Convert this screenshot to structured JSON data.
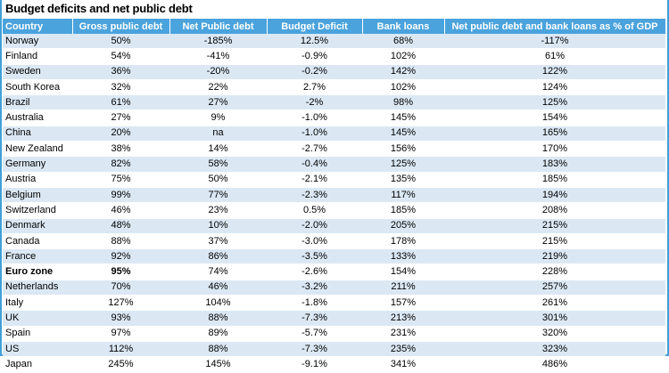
{
  "title": "Budget deficits and net public debt",
  "headers": [
    "Country",
    "Gross public debt",
    "Net Public debt",
    "Budget Deficit",
    "Bank loans",
    "Net public debt and bank loans as % of GDP"
  ],
  "rows": [
    [
      "Norway",
      "50%",
      "-185%",
      "12.5%",
      "68%",
      "-117%"
    ],
    [
      "Finland",
      "54%",
      "-41%",
      "-0.9%",
      "102%",
      "61%"
    ],
    [
      "Sweden",
      "36%",
      "-20%",
      "-0.2%",
      "142%",
      "122%"
    ],
    [
      "South Korea",
      "32%",
      "22%",
      "2.7%",
      "102%",
      "124%"
    ],
    [
      "Brazil",
      "61%",
      "27%",
      "-2%",
      "98%",
      "125%"
    ],
    [
      "Australia",
      "27%",
      "9%",
      "-1.0%",
      "145%",
      "154%"
    ],
    [
      "China",
      "20%",
      "na",
      "-1.0%",
      "145%",
      "165%"
    ],
    [
      "New Zealand",
      "38%",
      "14%",
      "-2.7%",
      "156%",
      "170%"
    ],
    [
      "Germany",
      "82%",
      "58%",
      "-0.4%",
      "125%",
      "183%"
    ],
    [
      "Austria",
      "75%",
      "50%",
      "-2.1%",
      "135%",
      "185%"
    ],
    [
      "Belgium",
      "99%",
      "77%",
      "-2.3%",
      "117%",
      "194%"
    ],
    [
      "Switzerland",
      "46%",
      "23%",
      "0.5%",
      "185%",
      "208%"
    ],
    [
      "Denmark",
      "48%",
      "10%",
      "-2.0%",
      "205%",
      "215%"
    ],
    [
      "Canada",
      "88%",
      "37%",
      "-3.0%",
      "178%",
      "215%"
    ],
    [
      "France",
      "92%",
      "86%",
      "-3.5%",
      "133%",
      "219%"
    ],
    [
      "Euro zone",
      "95%",
      "74%",
      "-2.6%",
      "154%",
      "228%"
    ],
    [
      "Netherlands",
      "70%",
      "46%",
      "-3.2%",
      "211%",
      "257%"
    ],
    [
      "Italy",
      "127%",
      "104%",
      "-1.8%",
      "157%",
      "261%"
    ],
    [
      "UK",
      "93%",
      "88%",
      "-7.3%",
      "213%",
      "301%"
    ],
    [
      "Spain",
      "97%",
      "89%",
      "-5.7%",
      "231%",
      "320%"
    ],
    [
      "US",
      "112%",
      "88%",
      "-7.3%",
      "235%",
      "323%"
    ],
    [
      "Japan",
      "245%",
      "145%",
      "-9.1%",
      "341%",
      "486%"
    ]
  ],
  "bold_row_index": 15,
  "colors": {
    "header_bg": "#4aa3dd",
    "stripe_bg": "#dbe8f4",
    "border": "#41a0d8"
  }
}
